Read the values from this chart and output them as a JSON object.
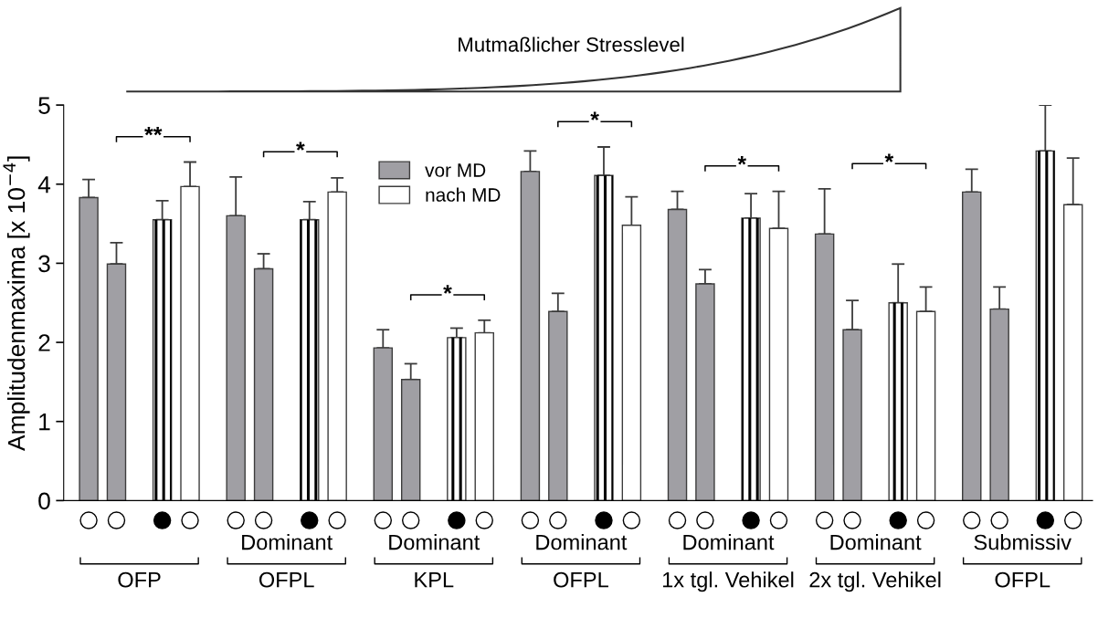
{
  "chart_data": {
    "type": "bar",
    "title": "Mutmaßlicher Stresslevel",
    "ylabel": "Amplitudenmaxima [x 10$^{−4}$]",
    "categories": [
      null,
      null,
      null,
      null,
      null,
      null,
      null,
      null,
      null,
      null,
      null,
      null,
      null,
      null,
      null,
      null,
      null,
      null,
      null,
      null,
      null,
      null,
      null,
      null,
      null,
      null,
      null,
      null
    ],
    "series": [
      {
        "name": "vor MD",
        "color": "#a09fa4",
        "values": [
          3.83,
          2.99,
          null,
          null,
          3.6,
          2.93,
          null,
          null,
          1.93,
          1.53,
          null,
          null,
          4.16,
          2.39,
          null,
          null,
          3.68,
          2.74,
          null,
          null,
          3.37,
          2.16,
          null,
          null,
          3.9,
          2.42,
          null,
          null
        ],
        "errors": [
          [
            3.83,
            4.06
          ],
          [
            2.99,
            3.26
          ],
          null,
          null,
          [
            3.6,
            4.09
          ],
          [
            2.93,
            3.12
          ],
          null,
          null,
          [
            1.93,
            2.16
          ],
          [
            1.53,
            1.73
          ],
          null,
          null,
          [
            4.16,
            4.42
          ],
          [
            2.39,
            2.62
          ],
          null,
          null,
          [
            3.68,
            3.91
          ],
          [
            2.74,
            2.92
          ],
          null,
          null,
          [
            3.37,
            3.94
          ],
          [
            2.16,
            2.53
          ],
          null,
          null,
          [
            3.9,
            4.19
          ],
          [
            2.42,
            2.7
          ],
          null,
          null
        ]
      },
      {
        "color": "#000000",
        "values": [
          null,
          null,
          3.55,
          null,
          null,
          null,
          3.55,
          null,
          null,
          null,
          2.06,
          null,
          null,
          null,
          4.11,
          null,
          null,
          null,
          3.57,
          null,
          null,
          null,
          2.5,
          null,
          null,
          null,
          4.42,
          null
        ],
        "errors": [
          null,
          null,
          [
            3.55,
            3.79
          ],
          null,
          null,
          null,
          [
            3.55,
            3.78
          ],
          null,
          null,
          null,
          [
            2.06,
            2.18
          ],
          null,
          null,
          null,
          [
            4.11,
            4.47
          ],
          null,
          null,
          null,
          [
            3.57,
            3.88
          ],
          null,
          null,
          null,
          [
            2.5,
            2.99
          ],
          null,
          null,
          null,
          [
            4.42,
            5.0
          ],
          null
        ]
      },
      {
        "name": "nach MD",
        "color": "#ffffff",
        "values": [
          null,
          null,
          null,
          3.97,
          null,
          null,
          null,
          3.9,
          null,
          null,
          null,
          2.12,
          null,
          null,
          null,
          3.48,
          null,
          null,
          null,
          3.44,
          null,
          null,
          null,
          2.39,
          null,
          null,
          null,
          3.74
        ],
        "errors": [
          null,
          null,
          null,
          [
            3.97,
            4.28
          ],
          null,
          null,
          null,
          [
            3.9,
            4.08
          ],
          null,
          null,
          null,
          [
            2.12,
            2.28
          ],
          null,
          null,
          null,
          [
            3.48,
            3.84
          ],
          null,
          null,
          null,
          [
            3.44,
            3.91
          ],
          null,
          null,
          null,
          [
            2.39,
            2.7
          ],
          null,
          null,
          null,
          [
            3.74,
            4.33
          ]
        ]
      }
    ],
    "ylim": [
      0,
      5
    ],
    "yticks": [
      0,
      1,
      2,
      3,
      4,
      5
    ],
    "grid": false,
    "legend": "top",
    "annotations": [
      "**",
      "*",
      "*",
      "*",
      "*",
      "*",
      "Dominant",
      "Dominant",
      "Dominant",
      "Dominant",
      "Dominant",
      "Submissiv",
      "OFP",
      "OFPL",
      "KPL",
      "OFPL",
      "1x tgl. Vehikel",
      "2x tgl. Vehikel",
      "OFPL"
    ]
  }
}
